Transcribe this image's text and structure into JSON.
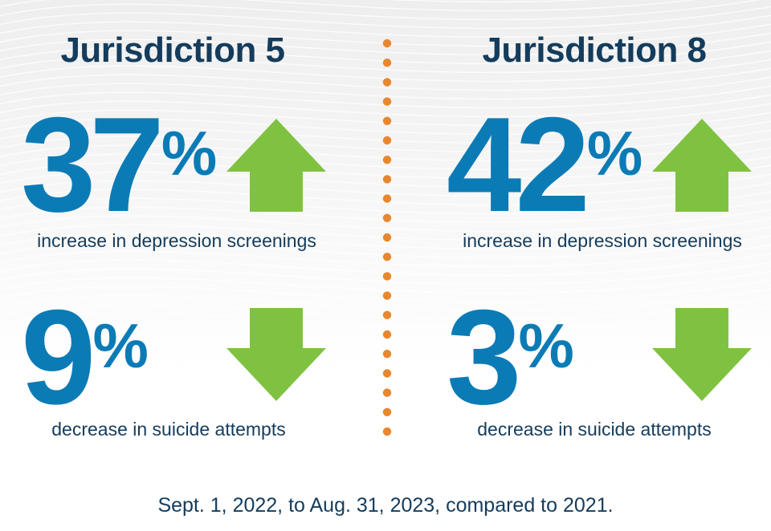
{
  "jurisdictions": [
    {
      "title": "Jurisdiction 5",
      "screening": {
        "value": "37",
        "unit": "%",
        "label": "increase in depression screenings",
        "direction": "up"
      },
      "suicide": {
        "value": "9",
        "unit": "%",
        "label": "decrease in suicide attempts",
        "direction": "down"
      }
    },
    {
      "title": "Jurisdiction 8",
      "screening": {
        "value": "42",
        "unit": "%",
        "label": "increase in depression screenings",
        "direction": "up"
      },
      "suicide": {
        "value": "3",
        "unit": "%",
        "label": "decrease in suicide attempts",
        "direction": "down"
      }
    }
  ],
  "footer": "Sept. 1, 2022, to Aug. 31, 2023, compared to 2021.",
  "colors": {
    "title": "#143c5c",
    "number": "#0b7bb6",
    "arrow": "#7fc241",
    "divider": "#e8872e"
  }
}
